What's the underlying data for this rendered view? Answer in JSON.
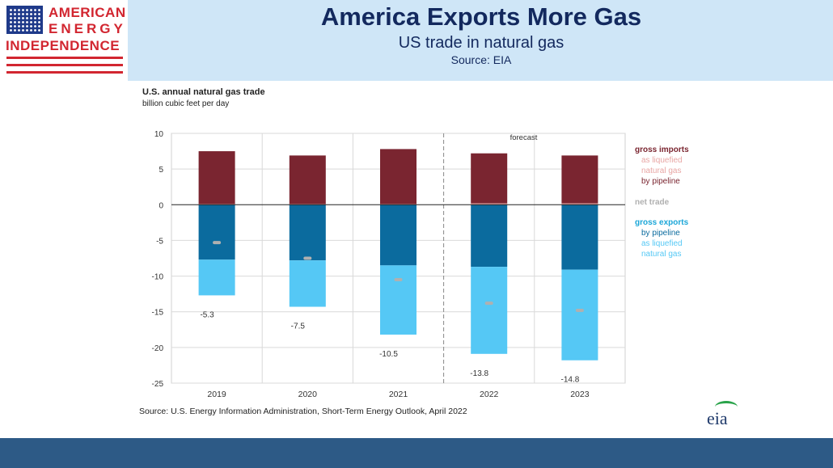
{
  "header": {
    "logo": {
      "line1": "AMERICAN",
      "line2": "ENERGY",
      "line3": "INDEPENDENCE",
      "flag_icon": "us-flag-icon"
    },
    "title": "America Exports More Gas",
    "subtitle": "US trade in natural gas",
    "source": "Source: EIA"
  },
  "chart_data": {
    "type": "bar",
    "title": "U.S. annual natural gas trade",
    "ylabel": "billion cubic feet per day",
    "categories": [
      "2019",
      "2020",
      "2021",
      "2022",
      "2023"
    ],
    "ylim": [
      -25,
      10
    ],
    "yticks": [
      10,
      5,
      0,
      -5,
      -10,
      -15,
      -20,
      -25
    ],
    "grid": true,
    "forecast_label": "forecast",
    "forecast_from": "2022",
    "series": [
      {
        "name": "as liquefied natural gas (imports)",
        "group": "gross imports",
        "color": "#e8a6a4",
        "values": [
          0.1,
          0.1,
          0.1,
          0.2,
          0.2
        ]
      },
      {
        "name": "by pipeline (imports)",
        "group": "gross imports",
        "color": "#7a2530",
        "values": [
          7.4,
          6.8,
          7.7,
          7.0,
          6.7
        ]
      },
      {
        "name": "by pipeline (exports)",
        "group": "gross exports",
        "color": "#0b6b9e",
        "values": [
          -7.7,
          -7.8,
          -8.5,
          -8.7,
          -9.1
        ]
      },
      {
        "name": "as liquefied natural gas (exports)",
        "group": "gross exports",
        "color": "#55c8f5",
        "values": [
          -5.0,
          -6.5,
          -9.7,
          -12.2,
          -12.7
        ]
      },
      {
        "name": "net trade",
        "color": "#b0b0b0",
        "values": [
          -5.3,
          -7.5,
          -10.5,
          -13.8,
          -14.8
        ]
      }
    ],
    "net_trade_labels": [
      "-5.3",
      "-7.5",
      "-10.5",
      "-13.8",
      "-14.8"
    ],
    "legend": {
      "placement": "right",
      "entries": [
        {
          "text": "gross  imports",
          "color": "#7a2530",
          "bold": true
        },
        {
          "text": "as liquefied",
          "color": "#e8a6a4",
          "bold": false
        },
        {
          "text": "natural gas",
          "color": "#e8a6a4",
          "bold": false
        },
        {
          "text": "by pipeline",
          "color": "#7a2530",
          "bold": false
        },
        {
          "text": "net trade",
          "color": "#b0b0b0",
          "bold": true
        },
        {
          "text": "gross  exports",
          "color": "#1aa6d8",
          "bold": true
        },
        {
          "text": "by pipeline",
          "color": "#0b6b9e",
          "bold": false
        },
        {
          "text": "as liquefied",
          "color": "#55c8f5",
          "bold": false
        },
        {
          "text": "natural gas",
          "color": "#55c8f5",
          "bold": false
        }
      ]
    }
  },
  "footer": {
    "source": "Source: U.S. Energy Information Administration, Short-Term  Energy Outlook, April 2022",
    "eia_logo": "eia"
  }
}
